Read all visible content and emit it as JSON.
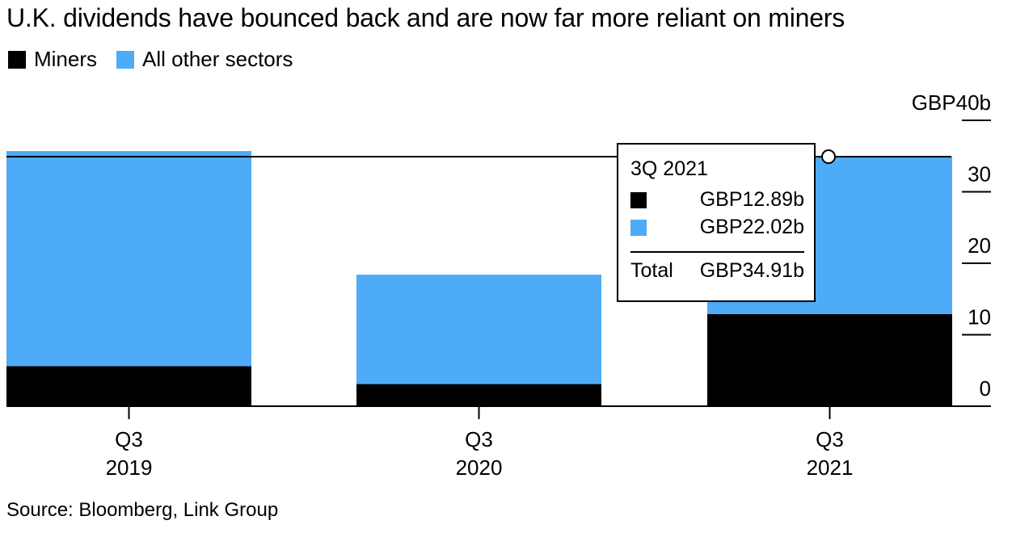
{
  "title": "U.K. dividends have bounced back and are now far more reliant on miners",
  "legend": [
    {
      "label": "Miners",
      "color": "#000000"
    },
    {
      "label": "All other sectors",
      "color": "#4dabf7"
    }
  ],
  "source": "Source: Bloomberg, Link Group",
  "chart_data": {
    "type": "bar",
    "stacked": true,
    "title": "U.K. dividends have bounced back and are now far more reliant on miners",
    "categories": [
      {
        "line1": "Q3",
        "line2": "2019"
      },
      {
        "line1": "Q3",
        "line2": "2020"
      },
      {
        "line1": "Q3",
        "line2": "2021"
      }
    ],
    "series": [
      {
        "name": "Miners",
        "color": "#000000",
        "values": [
          5.6,
          3.1,
          12.89
        ]
      },
      {
        "name": "All other sectors",
        "color": "#4dabf7",
        "values": [
          30.1,
          15.3,
          22.02
        ]
      }
    ],
    "ylim": [
      0,
      40
    ],
    "yticks": [
      {
        "value": 0,
        "label": "0"
      },
      {
        "value": 10,
        "label": "10"
      },
      {
        "value": 20,
        "label": "20"
      },
      {
        "value": 30,
        "label": "30"
      },
      {
        "value": 40,
        "label": "GBP40b"
      }
    ],
    "reference_line": 34.91,
    "xlabel": "",
    "ylabel": ""
  },
  "tooltip": {
    "title": "3Q 2021",
    "rows": [
      {
        "color": "#000000",
        "value": "GBP12.89b"
      },
      {
        "color": "#4dabf7",
        "value": "GBP22.02b"
      }
    ],
    "total_label": "Total",
    "total_value": "GBP34.91b"
  }
}
